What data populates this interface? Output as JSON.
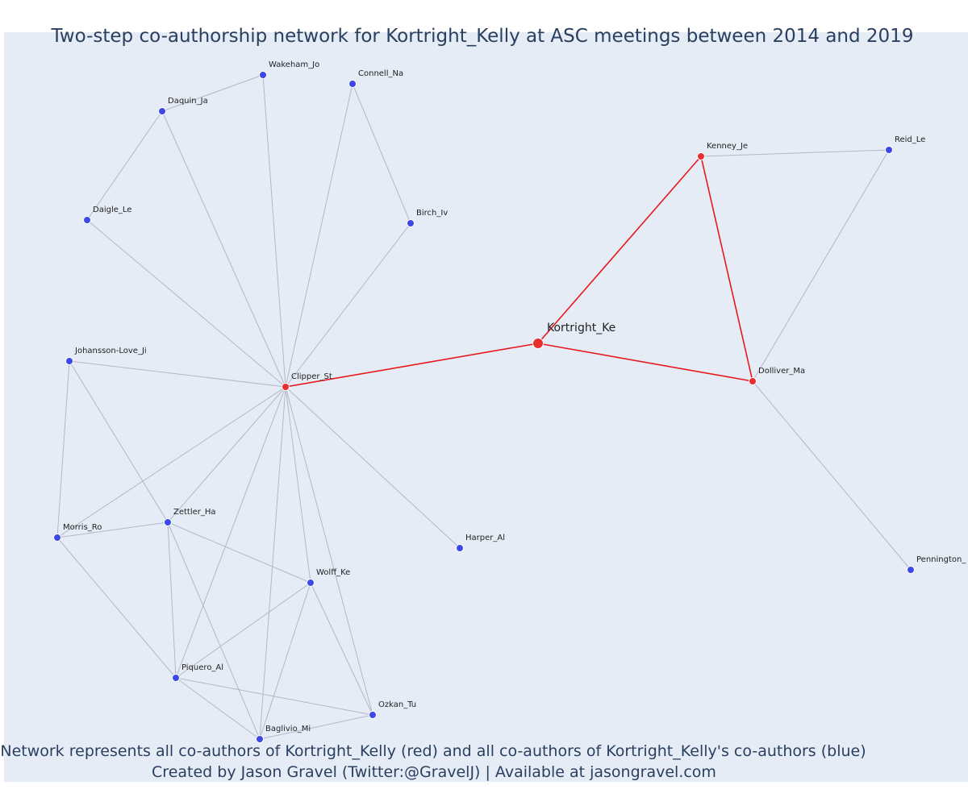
{
  "title": "Two-step co-authorship network for Kortright_Kelly at ASC meetings between 2014 and 2019",
  "caption": {
    "line1": "Network represents all co-authors of Kortright_Kelly (red) and all co-authors of Kortright_Kelly's co-authors (blue)",
    "line2": "Created by Jason Gravel (Twitter:@GravelJ) | Available at jasongravel.com"
  },
  "colors": {
    "background": "#e5ecf6",
    "coauthor_node": "#ea2d2d",
    "second_step_node": "#3d48e8",
    "coauthor_edge": "#e8191d",
    "second_step_edge": "#b2b7c8",
    "text": "#2a3f5f"
  },
  "nodes": [
    {
      "id": "Kortright_Ke",
      "label": "Kortright_Ke",
      "group": "focal"
    },
    {
      "id": "Clipper_St",
      "label": "Clipper_St",
      "group": "coauthor"
    },
    {
      "id": "Kenney_Je",
      "label": "Kenney_Je",
      "group": "coauthor"
    },
    {
      "id": "Dolliver_Ma",
      "label": "Dolliver_Ma",
      "group": "coauthor"
    },
    {
      "id": "Reid_Le",
      "label": "Reid_Le",
      "group": "second"
    },
    {
      "id": "Pennington_",
      "label": "Pennington_",
      "group": "second"
    },
    {
      "id": "Wakeham_Jo",
      "label": "Wakeham_Jo",
      "group": "second"
    },
    {
      "id": "Connell_Na",
      "label": "Connell_Na",
      "group": "second"
    },
    {
      "id": "Daquin_Ja",
      "label": "Daquin_Ja",
      "group": "second"
    },
    {
      "id": "Daigle_Le",
      "label": "Daigle_Le",
      "group": "second"
    },
    {
      "id": "Birch_Iv",
      "label": "Birch_Iv",
      "group": "second"
    },
    {
      "id": "Johansson-Love_Ji",
      "label": "Johansson-Love_Ji",
      "group": "second"
    },
    {
      "id": "Zettler_Ha",
      "label": "Zettler_Ha",
      "group": "second"
    },
    {
      "id": "Morris_Ro",
      "label": "Morris_Ro",
      "group": "second"
    },
    {
      "id": "Harper_Al",
      "label": "Harper_Al",
      "group": "second"
    },
    {
      "id": "Wolff_Ke",
      "label": "Wolff_Ke",
      "group": "second"
    },
    {
      "id": "Piquero_Al",
      "label": "Piquero_Al",
      "group": "second"
    },
    {
      "id": "Ozkan_Tu",
      "label": "Ozkan_Tu",
      "group": "second"
    },
    {
      "id": "Baglivio_Mi",
      "label": "Baglivio_Mi",
      "group": "second"
    }
  ],
  "edges": [
    {
      "source": "Kortright_Ke",
      "target": "Clipper_St",
      "type": "coauthor"
    },
    {
      "source": "Kortright_Ke",
      "target": "Kenney_Je",
      "type": "coauthor"
    },
    {
      "source": "Kortright_Ke",
      "target": "Dolliver_Ma",
      "type": "coauthor"
    },
    {
      "source": "Kenney_Je",
      "target": "Dolliver_Ma",
      "type": "coauthor"
    },
    {
      "source": "Kenney_Je",
      "target": "Reid_Le",
      "type": "second"
    },
    {
      "source": "Dolliver_Ma",
      "target": "Reid_Le",
      "type": "second"
    },
    {
      "source": "Dolliver_Ma",
      "target": "Pennington_",
      "type": "second"
    },
    {
      "source": "Daquin_Ja",
      "target": "Wakeham_Jo",
      "type": "second"
    },
    {
      "source": "Daquin_Ja",
      "target": "Daigle_Le",
      "type": "second"
    },
    {
      "source": "Daquin_Ja",
      "target": "Clipper_St",
      "type": "second"
    },
    {
      "source": "Wakeham_Jo",
      "target": "Clipper_St",
      "type": "second"
    },
    {
      "source": "Connell_Na",
      "target": "Clipper_St",
      "type": "second"
    },
    {
      "source": "Connell_Na",
      "target": "Birch_Iv",
      "type": "second"
    },
    {
      "source": "Daigle_Le",
      "target": "Clipper_St",
      "type": "second"
    },
    {
      "source": "Birch_Iv",
      "target": "Clipper_St",
      "type": "second"
    },
    {
      "source": "Johansson-Love_Ji",
      "target": "Clipper_St",
      "type": "second"
    },
    {
      "source": "Johansson-Love_Ji",
      "target": "Morris_Ro",
      "type": "second"
    },
    {
      "source": "Johansson-Love_Ji",
      "target": "Zettler_Ha",
      "type": "second"
    },
    {
      "source": "Morris_Ro",
      "target": "Clipper_St",
      "type": "second"
    },
    {
      "source": "Morris_Ro",
      "target": "Zettler_Ha",
      "type": "second"
    },
    {
      "source": "Morris_Ro",
      "target": "Piquero_Al",
      "type": "second"
    },
    {
      "source": "Zettler_Ha",
      "target": "Clipper_St",
      "type": "second"
    },
    {
      "source": "Zettler_Ha",
      "target": "Wolff_Ke",
      "type": "second"
    },
    {
      "source": "Zettler_Ha",
      "target": "Piquero_Al",
      "type": "second"
    },
    {
      "source": "Zettler_Ha",
      "target": "Baglivio_Mi",
      "type": "second"
    },
    {
      "source": "Clipper_St",
      "target": "Harper_Al",
      "type": "second"
    },
    {
      "source": "Clipper_St",
      "target": "Wolff_Ke",
      "type": "second"
    },
    {
      "source": "Clipper_St",
      "target": "Piquero_Al",
      "type": "second"
    },
    {
      "source": "Clipper_St",
      "target": "Baglivio_Mi",
      "type": "second"
    },
    {
      "source": "Clipper_St",
      "target": "Ozkan_Tu",
      "type": "second"
    },
    {
      "source": "Wolff_Ke",
      "target": "Piquero_Al",
      "type": "second"
    },
    {
      "source": "Wolff_Ke",
      "target": "Baglivio_Mi",
      "type": "second"
    },
    {
      "source": "Wolff_Ke",
      "target": "Ozkan_Tu",
      "type": "second"
    },
    {
      "source": "Piquero_Al",
      "target": "Baglivio_Mi",
      "type": "second"
    },
    {
      "source": "Piquero_Al",
      "target": "Ozkan_Tu",
      "type": "second"
    },
    {
      "source": "Baglivio_Mi",
      "target": "Ozkan_Tu",
      "type": "second"
    }
  ]
}
